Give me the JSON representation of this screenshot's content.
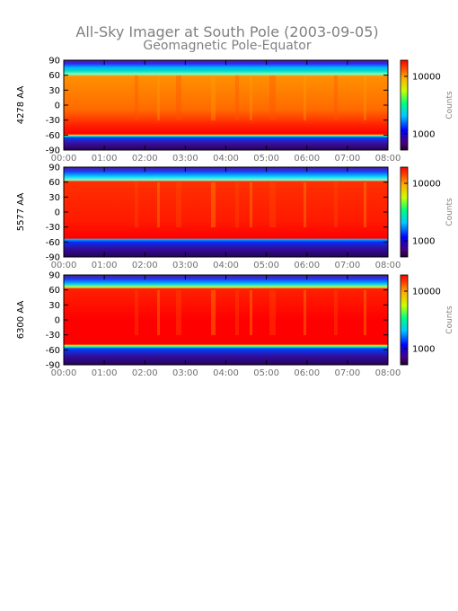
{
  "title_line1": "All-Sky Imager at South Pole (2003-09-05)",
  "title_line2": "Geomagnetic Pole-Equator",
  "chart_data": {
    "type": "heatmap",
    "x_ticks": [
      "00:00",
      "01:00",
      "02:00",
      "03:00",
      "04:00",
      "05:00",
      "06:00",
      "07:00",
      "08:00"
    ],
    "y_ticks": [
      90,
      60,
      30,
      0,
      -30,
      -60,
      -90
    ],
    "ylim": [
      -90,
      90
    ],
    "panels": [
      {
        "ylabel": "4278 AA",
        "colorbar_ticks": [
          "10000",
          "1000"
        ],
        "colorbar_label": "Counts"
      },
      {
        "ylabel": "5577 AA",
        "colorbar_ticks": [
          "10000",
          "1000"
        ],
        "colorbar_label": "Counts"
      },
      {
        "ylabel": "6300 AA",
        "colorbar_ticks": [
          "10000",
          "1000"
        ],
        "colorbar_label": "Counts"
      }
    ]
  }
}
